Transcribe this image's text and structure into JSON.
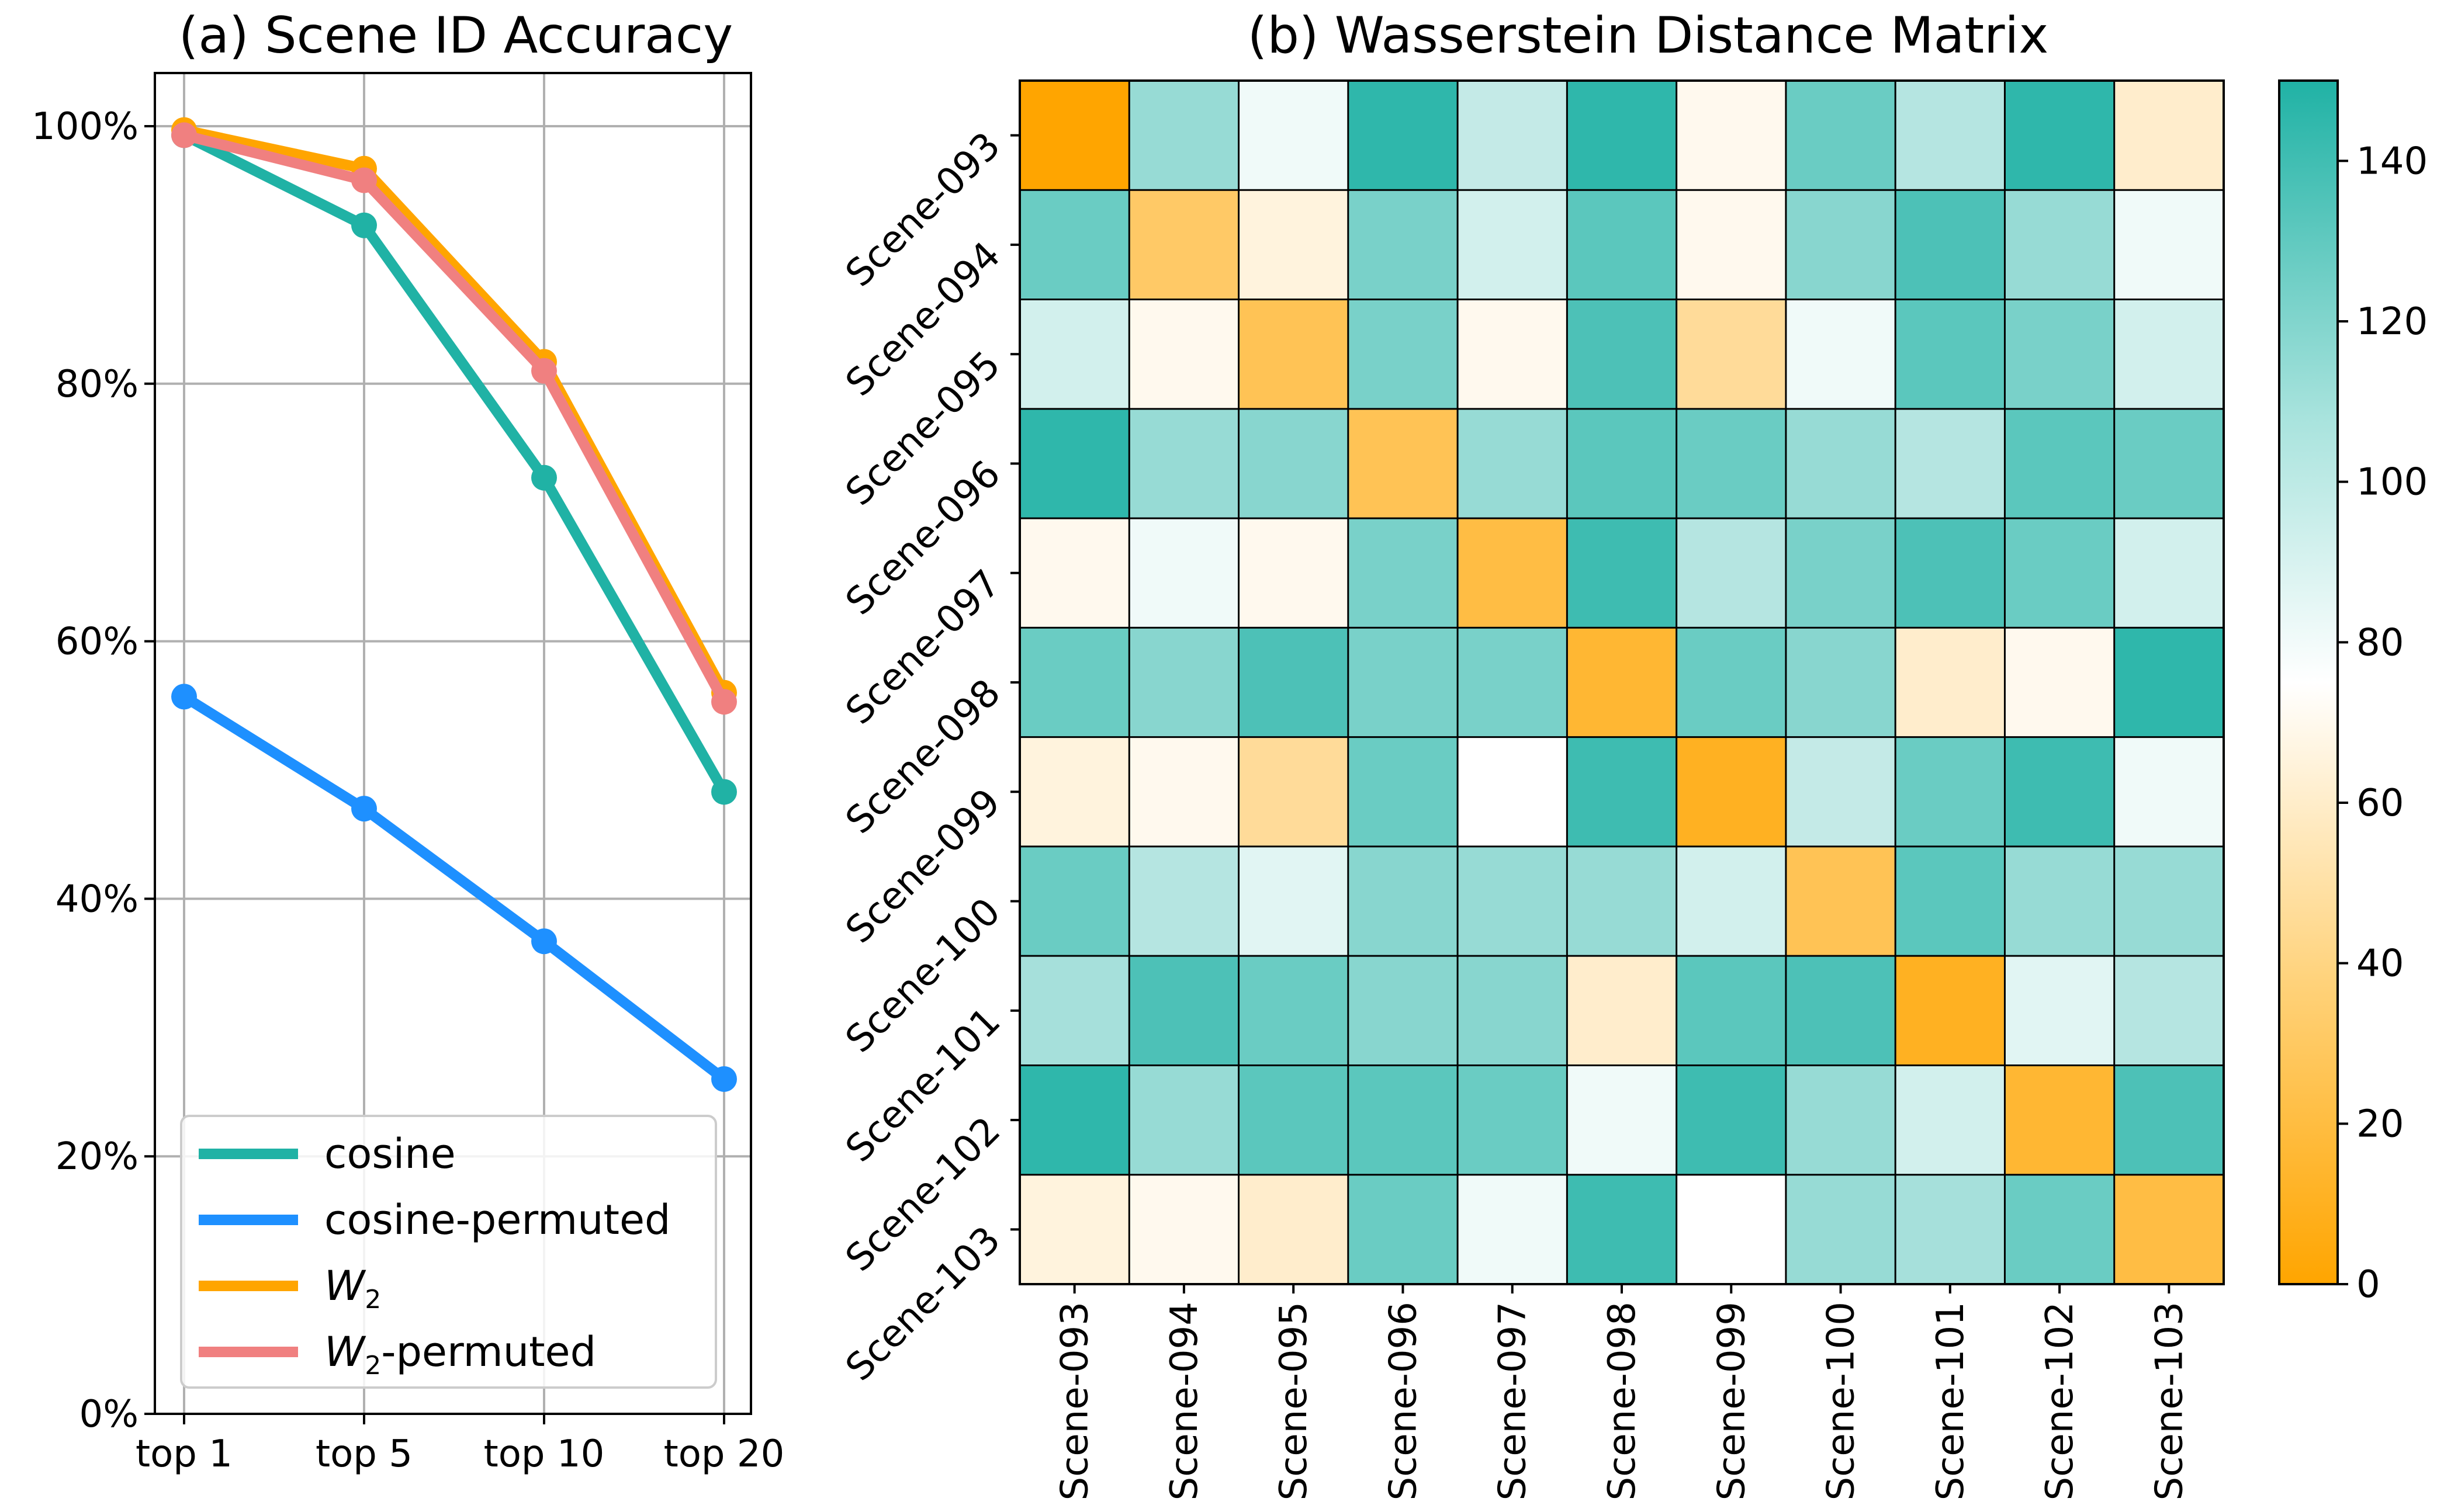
{
  "chart_data": [
    {
      "type": "line",
      "title": "(a) Scene ID Accuracy",
      "xlabel": "",
      "ylabel": "",
      "categories": [
        "top 1",
        "top 5",
        "top 10",
        "top 20"
      ],
      "ylim": [
        0,
        100
      ],
      "yticks": [
        "0%",
        "20%",
        "40%",
        "60%",
        "80%",
        "100%"
      ],
      "grid": true,
      "legend_position": "lower-left",
      "series": [
        {
          "name": "cosine",
          "label_base": "cosine",
          "label_sub": "",
          "label_suffix": "",
          "color": "#20b2a5",
          "values": [
            99.3,
            92.3,
            72.7,
            48.3
          ]
        },
        {
          "name": "cosine-permuted",
          "label_base": "cosine-permuted",
          "label_sub": "",
          "label_suffix": "",
          "color": "#1e90ff",
          "values": [
            55.7,
            47.0,
            36.7,
            26.0
          ]
        },
        {
          "name": "W2",
          "label_base": "W",
          "label_sub": "2",
          "label_suffix": "",
          "color": "#ffa500",
          "values": [
            99.7,
            96.7,
            81.7,
            56.0
          ]
        },
        {
          "name": "W2-permuted",
          "label_base": "W",
          "label_sub": "2",
          "label_suffix": "-permuted",
          "color": "#f08080",
          "values": [
            99.3,
            95.8,
            81.0,
            55.3
          ]
        }
      ]
    },
    {
      "type": "heatmap",
      "title": "(b) Wasserstein Distance Matrix",
      "rows": [
        "Scene-093",
        "Scene-094",
        "Scene-095",
        "Scene-096",
        "Scene-097",
        "Scene-098",
        "Scene-099",
        "Scene-100",
        "Scene-101",
        "Scene-102",
        "Scene-103"
      ],
      "cols": [
        "Scene-093",
        "Scene-094",
        "Scene-095",
        "Scene-096",
        "Scene-097",
        "Scene-098",
        "Scene-099",
        "Scene-100",
        "Scene-101",
        "Scene-102",
        "Scene-103"
      ],
      "values": [
        [
          0,
          110,
          80,
          145,
          95,
          145,
          70,
          125,
          100,
          145,
          60
        ],
        [
          125,
          30,
          65,
          120,
          90,
          130,
          70,
          115,
          135,
          110,
          80
        ],
        [
          90,
          70,
          25,
          120,
          70,
          135,
          45,
          80,
          130,
          120,
          90
        ],
        [
          145,
          110,
          115,
          25,
          110,
          130,
          125,
          110,
          100,
          130,
          125
        ],
        [
          70,
          80,
          70,
          120,
          20,
          140,
          100,
          120,
          135,
          125,
          90
        ],
        [
          125,
          115,
          135,
          120,
          120,
          15,
          125,
          115,
          60,
          70,
          145
        ],
        [
          65,
          70,
          45,
          125,
          75,
          140,
          10,
          95,
          125,
          140,
          80
        ],
        [
          125,
          100,
          85,
          115,
          110,
          110,
          90,
          25,
          130,
          110,
          110
        ],
        [
          105,
          135,
          125,
          115,
          115,
          60,
          130,
          135,
          10,
          85,
          100
        ],
        [
          145,
          110,
          130,
          130,
          125,
          80,
          140,
          110,
          90,
          15,
          135
        ],
        [
          65,
          70,
          60,
          125,
          80,
          140,
          75,
          110,
          105,
          125,
          20
        ]
      ],
      "colorbar": {
        "min": 0,
        "max": 150,
        "ticks": [
          0,
          20,
          40,
          60,
          80,
          100,
          120,
          140
        ]
      },
      "colors": {
        "low": "#ffa500",
        "mid": "#ffffff",
        "high": "#20b2a5"
      }
    }
  ]
}
